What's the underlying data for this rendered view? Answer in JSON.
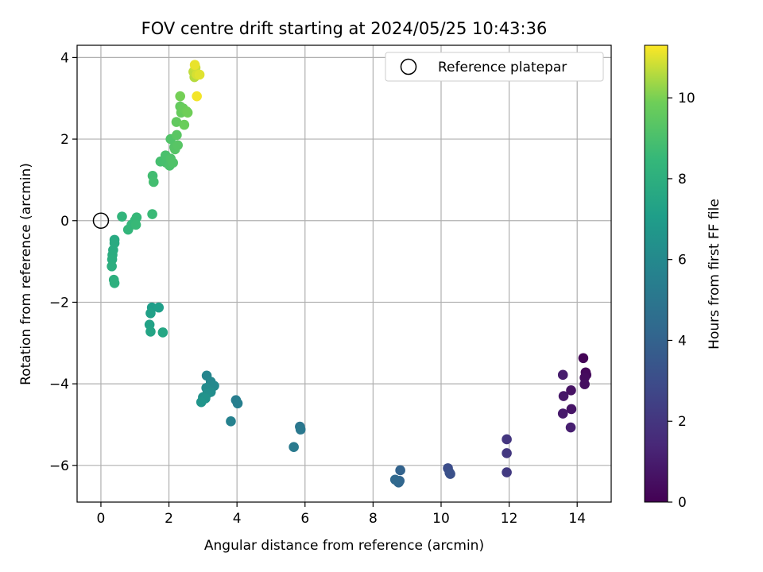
{
  "chart_data": {
    "type": "scatter",
    "title": "FOV centre drift starting at 2024/05/25 10:43:36",
    "xlabel": "Angular distance from reference (arcmin)",
    "ylabel": "Rotation from reference (arcmin)",
    "xlim": [
      -0.7,
      15.0
    ],
    "ylim": [
      -6.9,
      4.3
    ],
    "xticks": [
      0,
      2,
      4,
      6,
      8,
      10,
      12,
      14
    ],
    "yticks": [
      -6,
      -4,
      -2,
      0,
      2,
      4
    ],
    "grid": true,
    "legend": {
      "location": "top-right",
      "entries": [
        "Reference platepar"
      ]
    },
    "reference_point": {
      "x": 0,
      "y": 0
    },
    "colorbar": {
      "label": "Hours from first FF file",
      "min": 0,
      "max": 11.3,
      "ticks": [
        0,
        2,
        4,
        6,
        8,
        10
      ],
      "colormap": "viridis"
    },
    "points": [
      [
        14.18,
        -3.37,
        0.1
      ],
      [
        14.25,
        -3.72,
        0.2
      ],
      [
        14.27,
        -3.78,
        0.3
      ],
      [
        14.22,
        -3.85,
        0.4
      ],
      [
        14.22,
        -4.01,
        0.5
      ],
      [
        13.82,
        -4.16,
        0.6
      ],
      [
        13.83,
        -4.62,
        0.7
      ],
      [
        13.6,
        -4.3,
        0.8
      ],
      [
        13.58,
        -4.73,
        0.9
      ],
      [
        13.58,
        -3.78,
        1.0
      ],
      [
        13.81,
        -5.07,
        1.1
      ],
      [
        11.93,
        -5.36,
        2.0
      ],
      [
        11.93,
        -5.7,
        2.1
      ],
      [
        11.93,
        -6.17,
        2.2
      ],
      [
        10.2,
        -6.07,
        3.0
      ],
      [
        10.25,
        -6.18,
        3.1
      ],
      [
        10.27,
        -6.21,
        3.2
      ],
      [
        8.8,
        -6.12,
        4.0
      ],
      [
        8.78,
        -6.38,
        4.1
      ],
      [
        8.75,
        -6.42,
        4.2
      ],
      [
        8.65,
        -6.35,
        4.3
      ],
      [
        5.85,
        -5.05,
        5.0
      ],
      [
        5.87,
        -5.12,
        5.1
      ],
      [
        5.67,
        -5.55,
        5.2
      ],
      [
        3.97,
        -4.4,
        5.4
      ],
      [
        4.02,
        -4.48,
        5.5
      ],
      [
        3.82,
        -4.92,
        5.6
      ],
      [
        3.11,
        -3.8,
        5.8
      ],
      [
        3.23,
        -3.95,
        5.9
      ],
      [
        3.33,
        -4.05,
        6.0
      ],
      [
        3.1,
        -4.1,
        6.1
      ],
      [
        3.23,
        -4.2,
        6.2
      ],
      [
        3.12,
        -4.25,
        6.3
      ],
      [
        3.0,
        -4.33,
        6.4
      ],
      [
        3.07,
        -4.36,
        6.5
      ],
      [
        2.95,
        -4.45,
        6.6
      ],
      [
        1.5,
        -2.13,
        7.0
      ],
      [
        1.7,
        -2.13,
        7.1
      ],
      [
        1.46,
        -2.27,
        7.2
      ],
      [
        1.43,
        -2.55,
        7.3
      ],
      [
        1.46,
        -2.72,
        7.4
      ],
      [
        1.82,
        -2.74,
        7.5
      ],
      [
        0.4,
        -0.47,
        7.7
      ],
      [
        0.4,
        -0.55,
        7.75
      ],
      [
        0.36,
        -0.72,
        7.8
      ],
      [
        0.34,
        -0.84,
        7.85
      ],
      [
        0.33,
        -0.95,
        7.9
      ],
      [
        0.32,
        -1.12,
        7.95
      ],
      [
        0.38,
        -1.45,
        8.0
      ],
      [
        0.4,
        -1.53,
        8.05
      ],
      [
        0.62,
        0.1,
        8.3
      ],
      [
        0.8,
        -0.22,
        8.35
      ],
      [
        0.9,
        -0.1,
        8.4
      ],
      [
        1.0,
        0.0,
        8.45
      ],
      [
        1.05,
        0.08,
        8.5
      ],
      [
        1.03,
        -0.1,
        8.55
      ],
      [
        1.51,
        0.16,
        8.6
      ],
      [
        1.52,
        1.1,
        8.8
      ],
      [
        1.55,
        0.95,
        8.85
      ],
      [
        1.75,
        1.45,
        8.9
      ],
      [
        1.92,
        1.42,
        8.95
      ],
      [
        1.9,
        1.6,
        9.0
      ],
      [
        2.02,
        1.35,
        9.05
      ],
      [
        2.05,
        1.52,
        9.1
      ],
      [
        2.12,
        1.42,
        9.15
      ],
      [
        2.05,
        2.0,
        9.2
      ],
      [
        2.16,
        1.8,
        9.25
      ],
      [
        2.18,
        1.75,
        9.3
      ],
      [
        2.26,
        1.85,
        9.35
      ],
      [
        2.23,
        2.1,
        9.4
      ],
      [
        2.22,
        2.42,
        9.6
      ],
      [
        2.33,
        2.8,
        9.65
      ],
      [
        2.36,
        2.65,
        9.7
      ],
      [
        2.42,
        2.75,
        9.75
      ],
      [
        2.45,
        2.35,
        9.8
      ],
      [
        2.52,
        2.68,
        9.85
      ],
      [
        2.55,
        2.65,
        9.9
      ],
      [
        2.33,
        3.05,
        9.95
      ],
      [
        2.75,
        3.52,
        10.6
      ],
      [
        2.72,
        3.65,
        10.7
      ],
      [
        2.78,
        3.75,
        10.8
      ],
      [
        2.82,
        3.58,
        10.9
      ],
      [
        2.9,
        3.58,
        11.0
      ],
      [
        2.76,
        3.82,
        11.1
      ],
      [
        2.82,
        3.05,
        11.2
      ]
    ]
  }
}
